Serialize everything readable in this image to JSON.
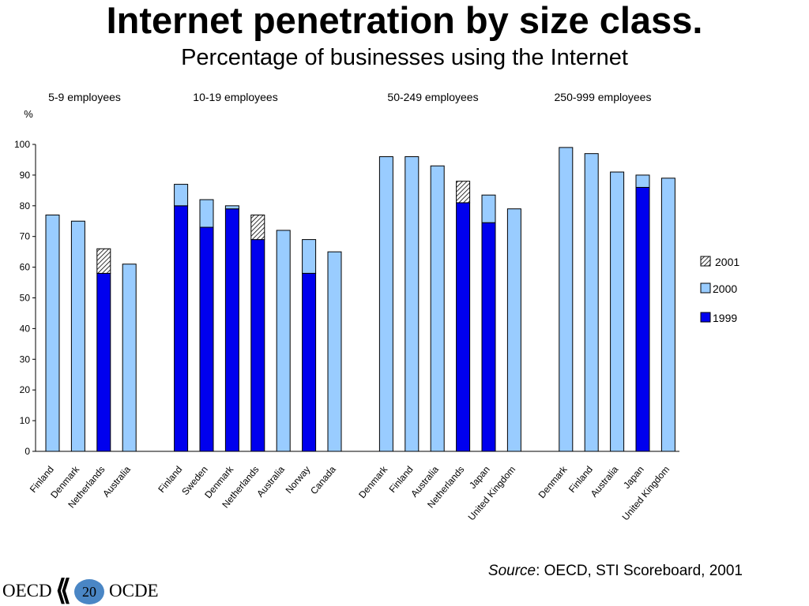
{
  "title": "Internet penetration by size class.",
  "subtitle": "Percentage of businesses using the Internet",
  "source_label": "Source",
  "source_text": ":  OECD, STI Scoreboard, 2001",
  "footer": {
    "logo_left": "OECD",
    "logo_right": "OCDE",
    "page_number": "20"
  },
  "colors": {
    "y1999": "#0000ee",
    "y2000": "#99ccff",
    "y2001_hatch": "#000000",
    "outline": "#000000"
  },
  "chart_data": {
    "type": "bar",
    "ylabel": "%",
    "ylim": [
      0,
      100
    ],
    "yticks": [
      0,
      10,
      20,
      30,
      40,
      50,
      60,
      70,
      80,
      90,
      100
    ],
    "grid": false,
    "legend_position": "right",
    "legend": [
      {
        "key": "y2001",
        "label": "2001"
      },
      {
        "key": "y2000",
        "label": "2000"
      },
      {
        "key": "y1999",
        "label": "1999"
      }
    ],
    "groups": [
      {
        "name": "5-9 employees",
        "bars": [
          {
            "country": "Finland",
            "y2000": 77
          },
          {
            "country": "Denmark",
            "y2000": 75
          },
          {
            "country": "Netherlands",
            "y1999": 58,
            "y2001": 66
          },
          {
            "country": "Australia",
            "y2000": 61
          }
        ]
      },
      {
        "name": "10-19 employees",
        "bars": [
          {
            "country": "Finland",
            "y1999": 80,
            "y2000": 87
          },
          {
            "country": "Sweden",
            "y1999": 73,
            "y2000": 82
          },
          {
            "country": "Denmark",
            "y1999": 79,
            "y2000": 80
          },
          {
            "country": "Netherlands",
            "y1999": 69,
            "y2001": 77
          },
          {
            "country": "Australia",
            "y2000": 72
          },
          {
            "country": "Norway",
            "y1999": 58,
            "y2000": 69
          },
          {
            "country": "Canada",
            "y2000": 65
          }
        ]
      },
      {
        "name": "50-249 employees",
        "bars": [
          {
            "country": "Denmark",
            "y2000": 96
          },
          {
            "country": "Finland",
            "y2000": 96
          },
          {
            "country": "Australia",
            "y2000": 93
          },
          {
            "country": "Netherlands",
            "y1999": 81,
            "y2001": 88
          },
          {
            "country": "Japan",
            "y1999": 74.5,
            "y2000": 83.5
          },
          {
            "country": "United Kingdom",
            "y2000": 79
          }
        ]
      },
      {
        "name": "250-999 employees",
        "bars": [
          {
            "country": "Denmark",
            "y2000": 99
          },
          {
            "country": "Finland",
            "y2000": 97
          },
          {
            "country": "Australia",
            "y2000": 91
          },
          {
            "country": "Japan",
            "y1999": 86,
            "y2000": 90
          },
          {
            "country": "United Kingdom",
            "y2000": 89
          }
        ]
      }
    ]
  }
}
